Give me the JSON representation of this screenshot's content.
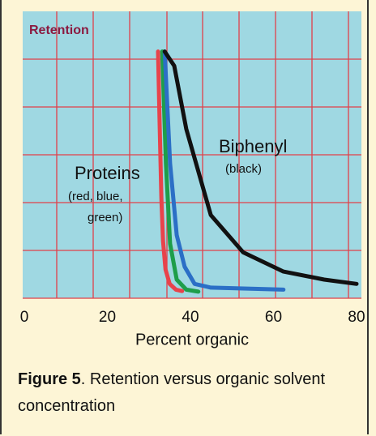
{
  "chart_data": {
    "type": "line",
    "y_label": "Retention",
    "x_label": "Percent organic",
    "xlim": [
      0,
      80
    ],
    "xticks": [
      0,
      20,
      40,
      60,
      80
    ],
    "ylim": [
      0,
      100
    ],
    "annotations": [
      "Biphenyl",
      "(black)",
      "Proteins",
      "(red, blue,",
      "green)"
    ],
    "caption_label": "Figure 5",
    "caption_text": ". Retention versus organic solvent concentration",
    "series": [
      {
        "color": "#e8434b",
        "x": [
          32.2,
          32.6,
          33,
          33.4,
          34,
          35,
          36.5,
          38
        ],
        "values": [
          86,
          60,
          35,
          20,
          10,
          5,
          3,
          2.5
        ]
      },
      {
        "color": "#1e9e4a",
        "x": [
          33.2,
          34.1,
          35.1,
          36.7,
          39,
          41.9
        ],
        "values": [
          86,
          47,
          19,
          6.5,
          3,
          2.3
        ]
      },
      {
        "color": "#2b6fc6",
        "x": [
          33.8,
          35.1,
          36.7,
          38.6,
          41,
          44.9,
          62.4
        ],
        "values": [
          86,
          47,
          22,
          11,
          5,
          3.7,
          3
        ]
      },
      {
        "color": "#111111",
        "x": [
          33.8,
          36.1,
          39,
          44.9,
          52.7,
          62.4,
          72.2,
          80
        ],
        "values": [
          86,
          81,
          59,
          29,
          16,
          9.3,
          6.5,
          5
        ]
      }
    ]
  }
}
